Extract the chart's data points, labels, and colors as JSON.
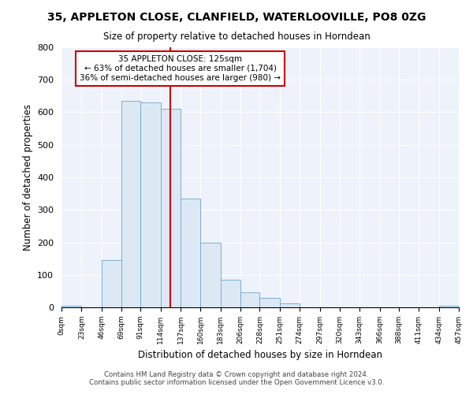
{
  "title": "35, APPLETON CLOSE, CLANFIELD, WATERLOOVILLE, PO8 0ZG",
  "subtitle": "Size of property relative to detached houses in Horndean",
  "xlabel": "Distribution of detached houses by size in Horndean",
  "ylabel": "Number of detached properties",
  "bin_edges": [
    0,
    23,
    46,
    69,
    91,
    114,
    137,
    160,
    183,
    206,
    228,
    251,
    274,
    297,
    320,
    343,
    366,
    388,
    411,
    434,
    457
  ],
  "bin_labels": [
    "0sqm",
    "23sqm",
    "46sqm",
    "69sqm",
    "91sqm",
    "114sqm",
    "137sqm",
    "160sqm",
    "183sqm",
    "206sqm",
    "228sqm",
    "251sqm",
    "274sqm",
    "297sqm",
    "320sqm",
    "343sqm",
    "366sqm",
    "388sqm",
    "411sqm",
    "434sqm",
    "457sqm"
  ],
  "bar_heights": [
    5,
    0,
    145,
    635,
    630,
    610,
    335,
    200,
    85,
    45,
    28,
    12,
    0,
    0,
    0,
    0,
    0,
    0,
    0,
    5
  ],
  "bar_color": "#dce9f5",
  "bar_edge_color": "#7aaed4",
  "property_value": 125,
  "vline_color": "#cc0000",
  "annotation_text1": "35 APPLETON CLOSE: 125sqm",
  "annotation_text2": "← 63% of detached houses are smaller (1,704)",
  "annotation_text3": "36% of semi-detached houses are larger (980) →",
  "annotation_box_color": "#ffffff",
  "annotation_box_edge": "#cc0000",
  "ylim": [
    0,
    800
  ],
  "yticks": [
    0,
    100,
    200,
    300,
    400,
    500,
    600,
    700,
    800
  ],
  "footnote1": "Contains HM Land Registry data © Crown copyright and database right 2024.",
  "footnote2": "Contains public sector information licensed under the Open Government Licence v3.0.",
  "bg_color": "#ffffff",
  "plot_bg_color": "#eef2fa",
  "grid_color": "#ffffff"
}
